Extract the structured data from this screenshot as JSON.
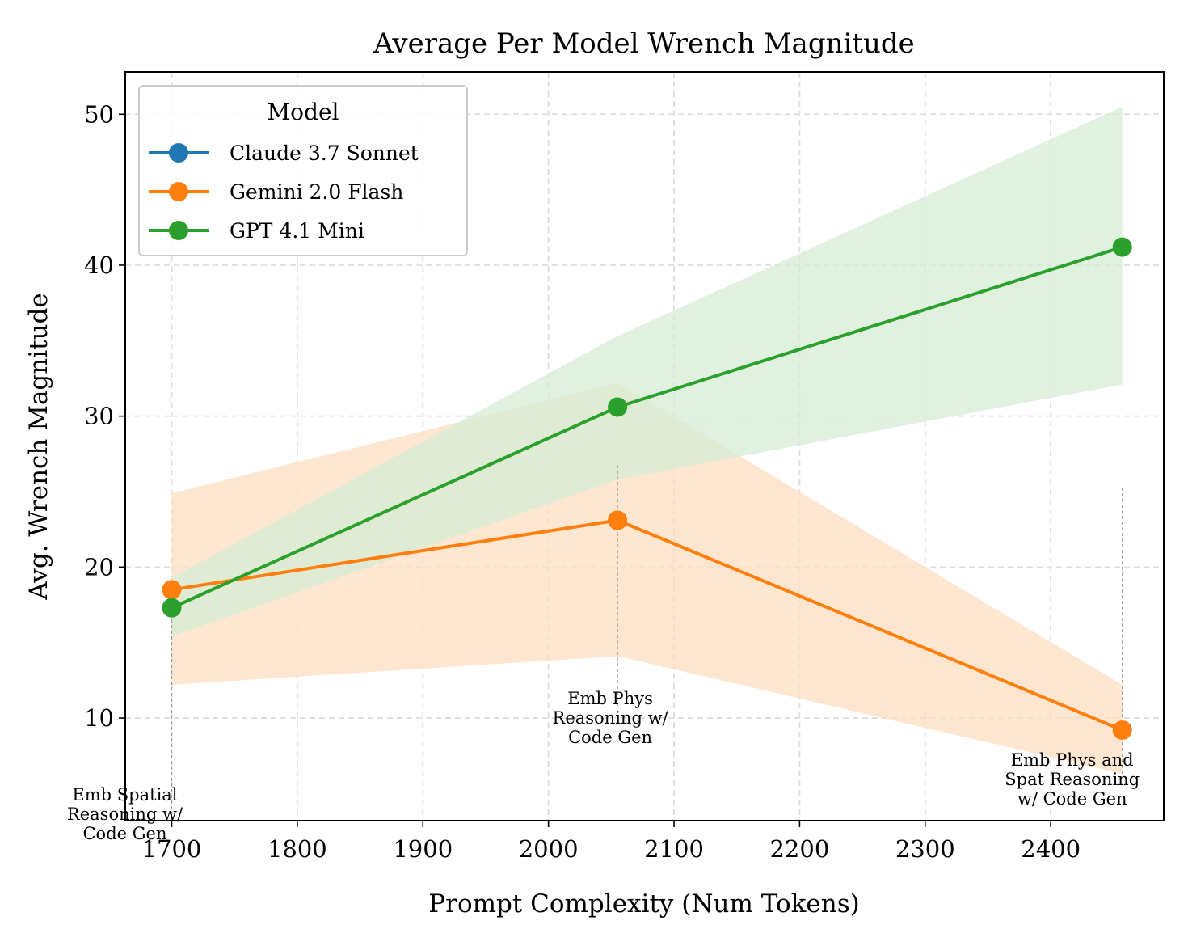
{
  "chart_data": {
    "type": "line",
    "title": "Average Per Model Wrench Magnitude",
    "xlabel": "Prompt Complexity (Num Tokens)",
    "ylabel": "Avg. Wrench Magnitude",
    "xlim": [
      1663,
      2490
    ],
    "ylim": [
      3.2,
      52.8
    ],
    "xticks": [
      1700,
      1800,
      1900,
      2000,
      2100,
      2200,
      2300,
      2400
    ],
    "yticks": [
      10,
      20,
      30,
      40,
      50
    ],
    "grid": true,
    "legend": {
      "title": "Model",
      "placement": "top-left"
    },
    "series": [
      {
        "name": "Claude 3.7 Sonnet",
        "color": "#1f77b4",
        "x": [],
        "y": [],
        "band_lower": [],
        "band_upper": []
      },
      {
        "name": "Gemini 2.0 Flash",
        "color": "#ff7f0e",
        "band_color": "#ffddc0",
        "x": [
          1700,
          2055,
          2457
        ],
        "y": [
          18.5,
          23.1,
          9.2
        ],
        "band_lower": [
          12.2,
          14.1,
          6.3
        ],
        "band_upper": [
          24.9,
          32.2,
          12.2
        ]
      },
      {
        "name": "GPT 4.1 Mini",
        "color": "#2ca02c",
        "band_color": "#d5ecd5",
        "x": [
          1700,
          2055,
          2457
        ],
        "y": [
          17.3,
          30.6,
          41.2
        ],
        "band_lower": [
          15.4,
          25.8,
          32.1
        ],
        "band_upper": [
          19.3,
          35.3,
          50.5
        ]
      }
    ],
    "annotations": [
      {
        "x": 1700,
        "lines": [
          "Emb Spatial",
          "Reasoning w/",
          "Code Gen"
        ],
        "line_from": 3.2,
        "line_to": 17.3
      },
      {
        "x": 2055,
        "lines": [
          "Emb Phys",
          "Reasoning w/",
          "Code Gen"
        ],
        "line_from": 10.8,
        "line_to": 26.9
      },
      {
        "x": 2457,
        "lines": [
          "Emb Phys and",
          "Spat Reasoning",
          "w/ Code Gen"
        ],
        "line_from": 6.3,
        "line_to": 25.3
      }
    ]
  }
}
